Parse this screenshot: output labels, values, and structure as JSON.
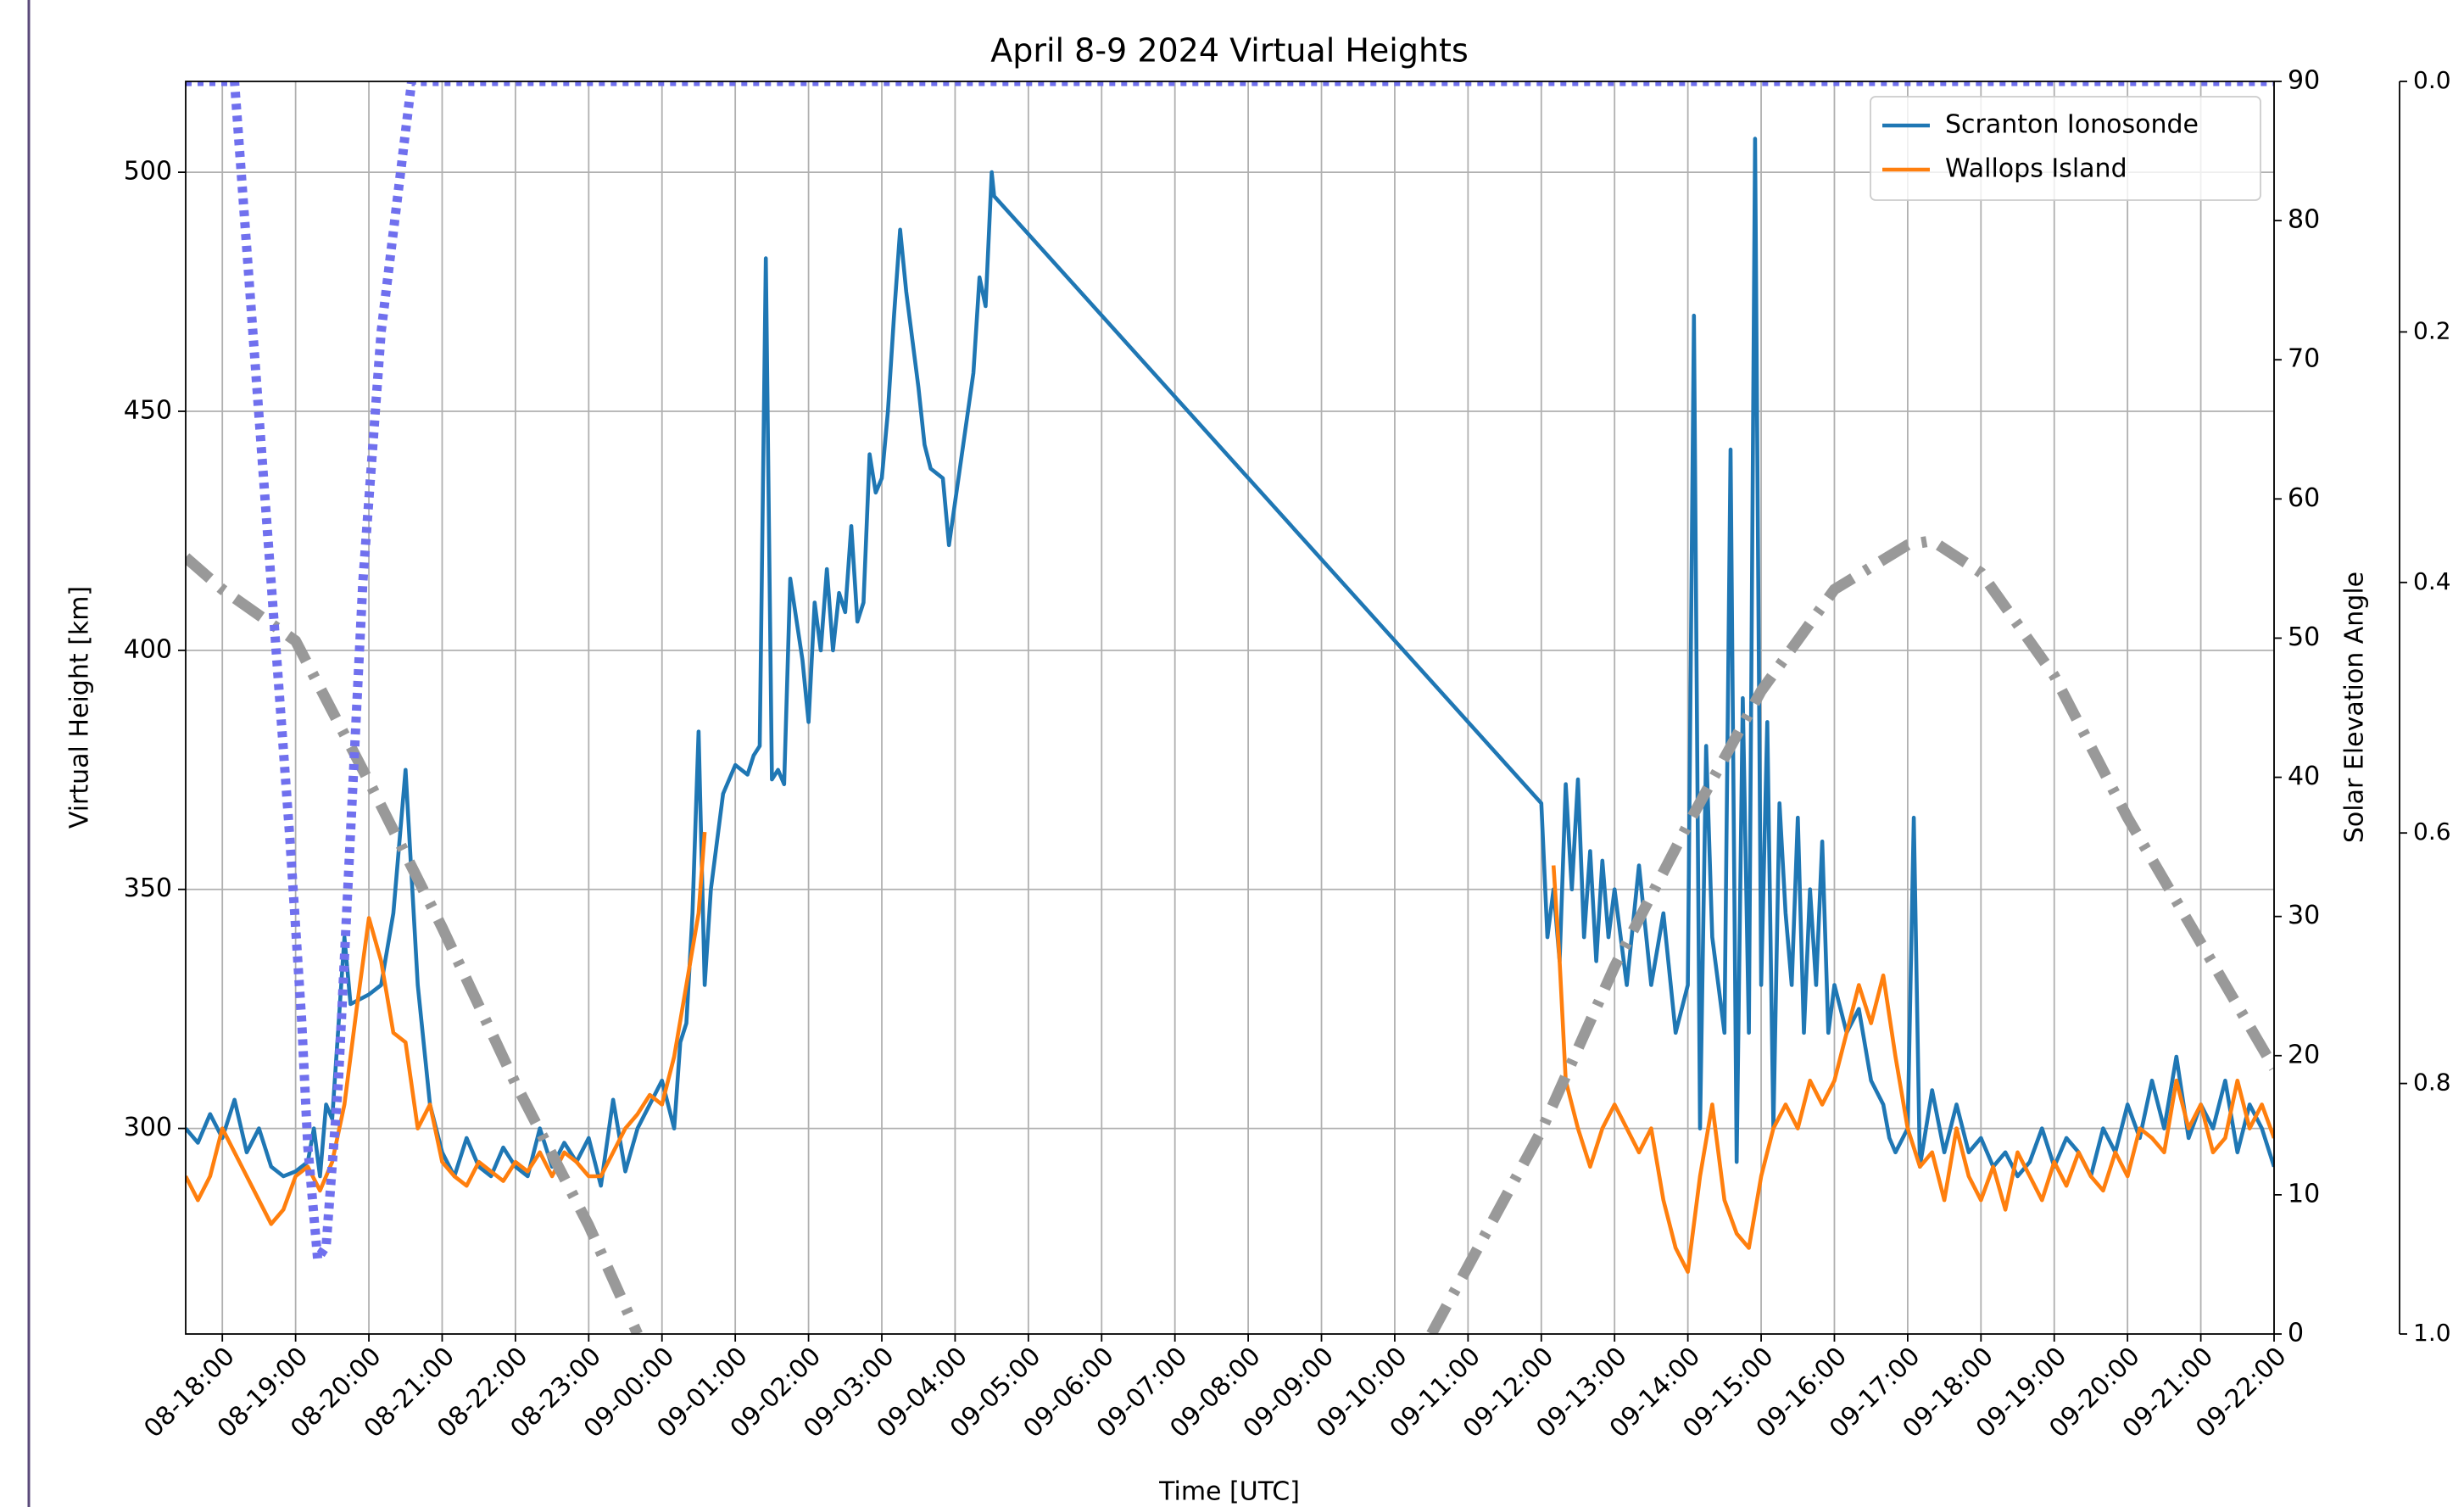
{
  "chart_data": {
    "type": "line",
    "title": "April 8-9 2024 Virtual Heights",
    "xlabel": "Time [UTC]",
    "ylabel": "Virtual Height [km]",
    "y2label": "Solar Elevation Angle",
    "xlim": [
      "08-17:30",
      "09-22:00"
    ],
    "xticks": [
      "08-18:00",
      "08-19:00",
      "08-20:00",
      "08-21:00",
      "08-22:00",
      "08-23:00",
      "09-00:00",
      "09-01:00",
      "09-02:00",
      "09-03:00",
      "09-04:00",
      "09-05:00",
      "09-06:00",
      "09-07:00",
      "09-08:00",
      "09-09:00",
      "09-10:00",
      "09-11:00",
      "09-12:00",
      "09-13:00",
      "09-14:00",
      "09-15:00",
      "09-16:00",
      "09-17:00",
      "09-18:00",
      "09-19:00",
      "09-20:00",
      "09-21:00",
      "09-22:00"
    ],
    "ylim": [
      257,
      519
    ],
    "yticks": [
      300,
      350,
      400,
      450,
      500
    ],
    "y2lim": [
      0,
      90
    ],
    "y2ticks": [
      0,
      10,
      20,
      30,
      40,
      50,
      60,
      70,
      80,
      90
    ],
    "y3lim": [
      0,
      1
    ],
    "y3inverted": true,
    "y3ticks": [
      {
        "value": 0,
        "label": "0.0"
      },
      {
        "value": 0.2,
        "label": "0.2"
      },
      {
        "value": 0.4,
        "label": "0.4"
      },
      {
        "value": 0.6,
        "label": "0.6"
      },
      {
        "value": 0.8,
        "label": "0.8"
      },
      {
        "value": 1,
        "label": "1.0"
      }
    ],
    "grid": true,
    "legend": "upper right",
    "series": [
      {
        "name": "Scranton Ionosonde",
        "color": "#1f77b4",
        "axis": "y",
        "style": "solid",
        "x": [
          "08-17:30",
          "08-17:40",
          "08-17:50",
          "08-18:00",
          "08-18:10",
          "08-18:20",
          "08-18:30",
          "08-18:40",
          "08-18:50",
          "08-19:00",
          "08-19:10",
          "08-19:15",
          "08-19:20",
          "08-19:25",
          "08-19:30",
          "08-19:40",
          "08-19:45",
          "08-20:00",
          "08-20:10",
          "08-20:20",
          "08-20:30",
          "08-20:40",
          "08-20:50",
          "08-21:00",
          "08-21:10",
          "08-21:20",
          "08-21:30",
          "08-21:40",
          "08-21:50",
          "08-22:00",
          "08-22:10",
          "08-22:20",
          "08-22:30",
          "08-22:40",
          "08-22:50",
          "08-23:00",
          "08-23:10",
          "08-23:20",
          "08-23:30",
          "08-23:40",
          "08-23:50",
          "09-00:00",
          "09-00:10",
          "09-00:15",
          "09-00:20",
          "09-00:25",
          "09-00:30",
          "09-00:35",
          "09-00:40",
          "09-00:50",
          "09-01:00",
          "09-01:10",
          "09-01:15",
          "09-01:20",
          "09-01:25",
          "09-01:30",
          "09-01:35",
          "09-01:40",
          "09-01:45",
          "09-01:55",
          "09-02:00",
          "09-02:05",
          "09-02:10",
          "09-02:15",
          "09-02:20",
          "09-02:25",
          "09-02:30",
          "09-02:35",
          "09-02:40",
          "09-02:45",
          "09-02:50",
          "09-02:55",
          "09-03:00",
          "09-03:05",
          "09-03:10",
          "09-03:15",
          "09-03:20",
          "09-03:30",
          "09-03:35",
          "09-03:40",
          "09-03:50",
          "09-03:55",
          "09-04:05",
          "09-04:15",
          "09-04:20",
          "09-04:25",
          "09-04:30",
          "09-04:32",
          "09-12:00",
          "09-12:05",
          "09-12:10",
          "09-12:15",
          "09-12:20",
          "09-12:25",
          "09-12:30",
          "09-12:35",
          "09-12:40",
          "09-12:45",
          "09-12:50",
          "09-12:55",
          "09-13:00",
          "09-13:10",
          "09-13:20",
          "09-13:30",
          "09-13:40",
          "09-13:50",
          "09-14:00",
          "09-14:05",
          "09-14:10",
          "09-14:15",
          "09-14:20",
          "09-14:30",
          "09-14:35",
          "09-14:40",
          "09-14:45",
          "09-14:50",
          "09-14:55",
          "09-15:00",
          "09-15:05",
          "09-15:10",
          "09-15:15",
          "09-15:20",
          "09-15:25",
          "09-15:30",
          "09-15:35",
          "09-15:40",
          "09-15:45",
          "09-15:50",
          "09-15:55",
          "09-16:00",
          "09-16:10",
          "09-16:20",
          "09-16:30",
          "09-16:40",
          "09-16:45",
          "09-16:50",
          "09-17:00",
          "09-17:05",
          "09-17:10",
          "09-17:20",
          "09-17:30",
          "09-17:40",
          "09-17:50",
          "09-18:00",
          "09-18:10",
          "09-18:20",
          "09-18:30",
          "09-18:40",
          "09-18:50",
          "09-19:00",
          "09-19:10",
          "09-19:20",
          "09-19:30",
          "09-19:40",
          "09-19:50",
          "09-20:00",
          "09-20:10",
          "09-20:20",
          "09-20:30",
          "09-20:40",
          "09-20:50",
          "09-21:00",
          "09-21:10",
          "09-21:20",
          "09-21:30",
          "09-21:40",
          "09-21:50",
          "09-22:00"
        ],
        "values": [
          300,
          297,
          303,
          298,
          306,
          295,
          300,
          292,
          290,
          291,
          293,
          300,
          290,
          305,
          302,
          340,
          326,
          328,
          330,
          345,
          375,
          330,
          305,
          295,
          290,
          298,
          292,
          290,
          296,
          292,
          290,
          300,
          292,
          297,
          293,
          298,
          288,
          306,
          291,
          300,
          305,
          310,
          300,
          318,
          322,
          345,
          383,
          330,
          350,
          370,
          376,
          374,
          378,
          380,
          482,
          373,
          375,
          372,
          415,
          398,
          385,
          410,
          400,
          417,
          400,
          412,
          408,
          426,
          406,
          410,
          441,
          433,
          436,
          450,
          470,
          488,
          475,
          455,
          443,
          438,
          436,
          422,
          440,
          458,
          478,
          472,
          500,
          495,
          368,
          340,
          350,
          335,
          372,
          350,
          373,
          340,
          358,
          335,
          356,
          340,
          350,
          330,
          355,
          330,
          345,
          320,
          330,
          470,
          300,
          380,
          340,
          320,
          442,
          293,
          390,
          320,
          507,
          330,
          385,
          300,
          368,
          345,
          330,
          365,
          320,
          350,
          330,
          360,
          320,
          330,
          320,
          325,
          310,
          305,
          298,
          295,
          300,
          365,
          292,
          308,
          295,
          305,
          295,
          298,
          292,
          295,
          290,
          293,
          300,
          292,
          298,
          295,
          290,
          300,
          295,
          305,
          298,
          310,
          300,
          315,
          298,
          305,
          300,
          310,
          295,
          305,
          300,
          292
        ]
      },
      {
        "name": "Wallops Island",
        "color": "#ff7f0e",
        "axis": "y",
        "style": "solid",
        "x": [
          "08-17:30",
          "08-17:40",
          "08-17:50",
          "08-18:00",
          "08-18:10",
          "08-18:20",
          "08-18:30",
          "08-18:40",
          "08-18:50",
          "08-19:00",
          "08-19:10",
          "08-19:20",
          "08-19:30",
          "08-19:40",
          "08-19:50",
          "08-20:00",
          "08-20:10",
          "08-20:20",
          "08-20:30",
          "08-20:40",
          "08-20:50",
          "08-21:00",
          "08-21:10",
          "08-21:20",
          "08-21:30",
          "08-21:40",
          "08-21:50",
          "08-22:00",
          "08-22:10",
          "08-22:20",
          "08-22:30",
          "08-22:40",
          "08-22:50",
          "08-23:00",
          "08-23:10",
          "08-23:20",
          "08-23:30",
          "08-23:40",
          "08-23:50",
          "09-00:00",
          "09-00:10",
          "09-00:20",
          "09-00:30",
          "09-00:35",
          "09-06:00",
          "09-12:10",
          "09-12:15",
          "09-12:20",
          "09-12:30",
          "09-12:40",
          "09-12:50",
          "09-13:00",
          "09-13:10",
          "09-13:20",
          "09-13:30",
          "09-13:40",
          "09-13:50",
          "09-14:00",
          "09-14:10",
          "09-14:20",
          "09-14:30",
          "09-14:40",
          "09-14:50",
          "09-15:00",
          "09-15:10",
          "09-15:20",
          "09-15:30",
          "09-15:40",
          "09-15:50",
          "09-16:00",
          "09-16:10",
          "09-16:20",
          "09-16:30",
          "09-16:40",
          "09-16:50",
          "09-17:00",
          "09-17:10",
          "09-17:20",
          "09-17:30",
          "09-17:40",
          "09-17:50",
          "09-18:00",
          "09-18:10",
          "09-18:20",
          "09-18:30",
          "09-18:40",
          "09-18:50",
          "09-19:00",
          "09-19:10",
          "09-19:20",
          "09-19:30",
          "09-19:40",
          "09-19:50",
          "09-20:00",
          "09-20:10",
          "09-20:20",
          "09-20:30",
          "09-20:40",
          "09-20:50",
          "09-21:00",
          "09-21:10",
          "09-21:20",
          "09-21:30",
          "09-21:40",
          "09-21:50",
          "09-22:00"
        ],
        "values": [
          290,
          285,
          290,
          300,
          295,
          290,
          285,
          280,
          283,
          290,
          292,
          287,
          293,
          305,
          325,
          344,
          335,
          320,
          318,
          300,
          305,
          293,
          290,
          288,
          293,
          291,
          289,
          293,
          291,
          295,
          290,
          295,
          293,
          290,
          290,
          295,
          300,
          303,
          307,
          305,
          315,
          330,
          345,
          362,
          null,
          355,
          335,
          310,
          300,
          292,
          300,
          305,
          300,
          295,
          300,
          285,
          275,
          270,
          290,
          305,
          285,
          278,
          275,
          290,
          300,
          305,
          300,
          310,
          305,
          310,
          320,
          330,
          322,
          332,
          315,
          300,
          292,
          295,
          285,
          300,
          290,
          285,
          292,
          283,
          295,
          290,
          285,
          293,
          288,
          295,
          290,
          287,
          295,
          290,
          300,
          298,
          295,
          310,
          300,
          305,
          295,
          298,
          310,
          300,
          305,
          298
        ]
      },
      {
        "color": "#999999",
        "axis": "y2",
        "style": "dashdot",
        "x": [
          "08-17:30",
          "08-18:00",
          "08-19:00",
          "08-20:00",
          "08-21:00",
          "08-22:00",
          "08-23:00",
          "08-23:40",
          "09-06:00",
          "09-10:30",
          "09-12:00",
          "09-13:00",
          "09-14:00",
          "09-15:00",
          "09-16:00",
          "09-17:00",
          "09-17:20",
          "09-18:00",
          "09-19:00",
          "09-20:00",
          "09-21:00",
          "09-22:00"
        ],
        "values": [
          55.8,
          53.5,
          49.8,
          39.7,
          29.2,
          18,
          7.8,
          0,
          null,
          0,
          14.6,
          26.4,
          36.6,
          46.2,
          53.5,
          56.7,
          57,
          54.7,
          47.3,
          37.1,
          28.1,
          19.1
        ]
      },
      {
        "color": "#7070ee",
        "axis": "y3",
        "style": "dotted",
        "x": [
          "08-17:30",
          "08-18:10",
          "08-18:25",
          "08-18:40",
          "08-18:55",
          "08-19:05",
          "08-19:10",
          "08-19:18",
          "08-19:25",
          "08-19:35",
          "08-19:45",
          "08-19:55",
          "08-20:10",
          "08-20:35",
          "09-22:00"
        ],
        "values": [
          0,
          0,
          0.2,
          0.4,
          0.6,
          0.75,
          0.85,
          0.94,
          0.93,
          0.8,
          0.6,
          0.4,
          0.2,
          0,
          0
        ]
      }
    ]
  }
}
